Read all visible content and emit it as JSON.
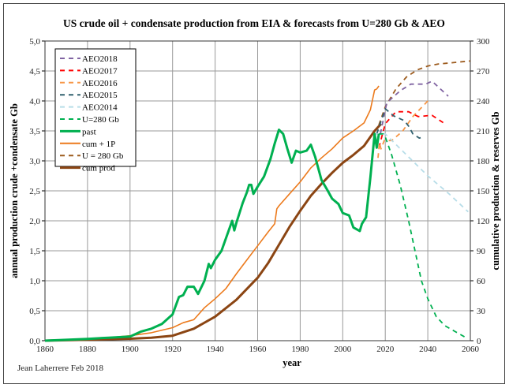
{
  "chart_data": {
    "type": "line",
    "title": "US crude oil + condensate production from EIA & forecasts from U=280 Gb & AEO",
    "xlabel": "year",
    "ylabel": "annual production crude +condensate Gb",
    "y2label": "cumulative production & reserves Gb",
    "credit": "Jean Laherrere Feb 2018",
    "xlim": [
      1860,
      2060
    ],
    "ylim": [
      0,
      5
    ],
    "y2lim": [
      0,
      300
    ],
    "xticks": [
      "1860",
      "1880",
      "1900",
      "1920",
      "1940",
      "1960",
      "1980",
      "2000",
      "2020",
      "2040",
      "2060"
    ],
    "yticks": [
      "0,0",
      "0,5",
      "1,0",
      "1,5",
      "2,0",
      "2,5",
      "3,0",
      "3,5",
      "4,0",
      "4,5",
      "5,0"
    ],
    "y2ticks": [
      "0",
      "30",
      "60",
      "90",
      "120",
      "150",
      "180",
      "210",
      "240",
      "270",
      "300"
    ],
    "grid": true,
    "legend_position": "top-left",
    "series": [
      {
        "name": "AEO2018",
        "axis": "left",
        "style": "dashed",
        "color": "#8064a2",
        "x": [
          2017.7,
          2020.7,
          2027,
          2032,
          2039,
          2042,
          2045.6,
          2049.6
        ],
        "y": [
          3.45,
          3.97,
          4.17,
          4.28,
          4.28,
          4.33,
          4.21,
          4.08
        ]
      },
      {
        "name": "AEO2017",
        "axis": "left",
        "style": "dashed",
        "color": "#ff0000",
        "x": [
          2017,
          2020,
          2025,
          2031,
          2035.5,
          2042,
          2048
        ],
        "y": [
          3.22,
          3.62,
          3.82,
          3.82,
          3.74,
          3.76,
          3.62
        ]
      },
      {
        "name": "AEO2016",
        "axis": "left",
        "style": "dashed",
        "color": "#f79646",
        "x": [
          2016.6,
          2017.3,
          2018,
          2019.5,
          2023,
          2028,
          2033,
          2040
        ],
        "y": [
          3.05,
          3.3,
          3.2,
          3.34,
          3.34,
          3.49,
          3.74,
          4.0
        ]
      },
      {
        "name": "AEO2015",
        "axis": "left",
        "style": "dashed",
        "color": "#31606e",
        "x": [
          2016,
          2020,
          2024,
          2029,
          2031,
          2033,
          2036,
          2038
        ],
        "y": [
          3.45,
          3.87,
          3.75,
          3.67,
          3.58,
          3.45,
          3.38,
          3.4
        ]
      },
      {
        "name": "AEO2014",
        "axis": "left",
        "style": "dashed",
        "color": "#b7dde8",
        "x": [
          2015,
          2020,
          2030,
          2040,
          2050,
          2059
        ],
        "y": [
          3.45,
          3.45,
          3.1,
          2.75,
          2.45,
          2.15
        ]
      },
      {
        "name": "U=280 Gb",
        "axis": "left",
        "style": "dashed",
        "color": "#00b050",
        "x": [
          2017,
          2019,
          2020,
          2023,
          2027,
          2031,
          2034,
          2037,
          2040,
          2044,
          2048,
          2053,
          2058
        ],
        "y": [
          3.45,
          3.45,
          3.4,
          3.1,
          2.6,
          2.0,
          1.5,
          1.0,
          0.7,
          0.4,
          0.25,
          0.15,
          0.05
        ]
      },
      {
        "name": "past",
        "axis": "left",
        "style": "solid-thick",
        "color": "#00b050",
        "x": [
          1860,
          1880,
          1890,
          1900,
          1905,
          1910,
          1915,
          1920,
          1923,
          1925,
          1927,
          1930,
          1932,
          1935,
          1937,
          1938,
          1940,
          1941,
          1943,
          1945,
          1948,
          1949,
          1950,
          1953,
          1955,
          1956,
          1957,
          1958,
          1960,
          1963,
          1966,
          1968,
          1970,
          1972,
          1974,
          1976,
          1978,
          1980,
          1983,
          1985,
          1987,
          1990,
          1993,
          1995,
          1998,
          2000,
          2003,
          2005,
          2008,
          2009,
          2011,
          2013,
          2015,
          2016,
          2017
        ],
        "y": [
          0,
          0.03,
          0.05,
          0.07,
          0.15,
          0.2,
          0.28,
          0.44,
          0.73,
          0.76,
          0.9,
          0.9,
          0.78,
          1.0,
          1.28,
          1.21,
          1.35,
          1.4,
          1.5,
          1.7,
          2.0,
          1.84,
          1.97,
          2.3,
          2.48,
          2.6,
          2.6,
          2.45,
          2.57,
          2.74,
          3.03,
          3.29,
          3.52,
          3.45,
          3.2,
          2.97,
          3.17,
          3.14,
          3.17,
          3.27,
          3.07,
          2.68,
          2.5,
          2.37,
          2.28,
          2.13,
          2.09,
          1.89,
          1.83,
          1.95,
          2.06,
          2.72,
          3.45,
          3.22,
          3.45
        ]
      },
      {
        "name": "cum + 1P",
        "axis": "right",
        "style": "solid",
        "color": "#ec7a1c",
        "x": [
          1860,
          1880,
          1900,
          1910,
          1920,
          1925,
          1930,
          1935,
          1940,
          1945,
          1950,
          1955,
          1960,
          1965,
          1968,
          1969,
          1970,
          1975,
          1980,
          1985,
          1990,
          1995,
          2000,
          2005,
          2010,
          2013,
          2015,
          2016,
          2017
        ],
        "y": [
          0,
          1,
          5,
          8,
          13,
          18,
          21,
          33,
          42,
          52,
          67,
          81,
          95,
          109,
          117,
          132,
          135,
          147,
          159,
          173,
          183,
          192,
          203,
          210,
          218,
          231,
          251,
          252,
          255
        ]
      },
      {
        "name": "U = 280 Gb",
        "axis": "right",
        "style": "dashed",
        "color": "#9c5a1c",
        "x": [
          2017,
          2020,
          2025,
          2030,
          2035,
          2040,
          2045,
          2050,
          2060
        ],
        "y": [
          216,
          234,
          252,
          264,
          271,
          275,
          277,
          278,
          280
        ]
      },
      {
        "name": "cum prod",
        "axis": "right",
        "style": "solid-thick",
        "color": "#8b4513",
        "x": [
          1860,
          1900,
          1910,
          1920,
          1930,
          1940,
          1950,
          1960,
          1965,
          1970,
          1975,
          1980,
          1985,
          1990,
          1995,
          2000,
          2005,
          2010,
          2015,
          2018
        ],
        "y": [
          0,
          2,
          3,
          5,
          12,
          24,
          41,
          63,
          78,
          96,
          114,
          130,
          145,
          157,
          168,
          178,
          186,
          195,
          210,
          217
        ]
      }
    ]
  }
}
